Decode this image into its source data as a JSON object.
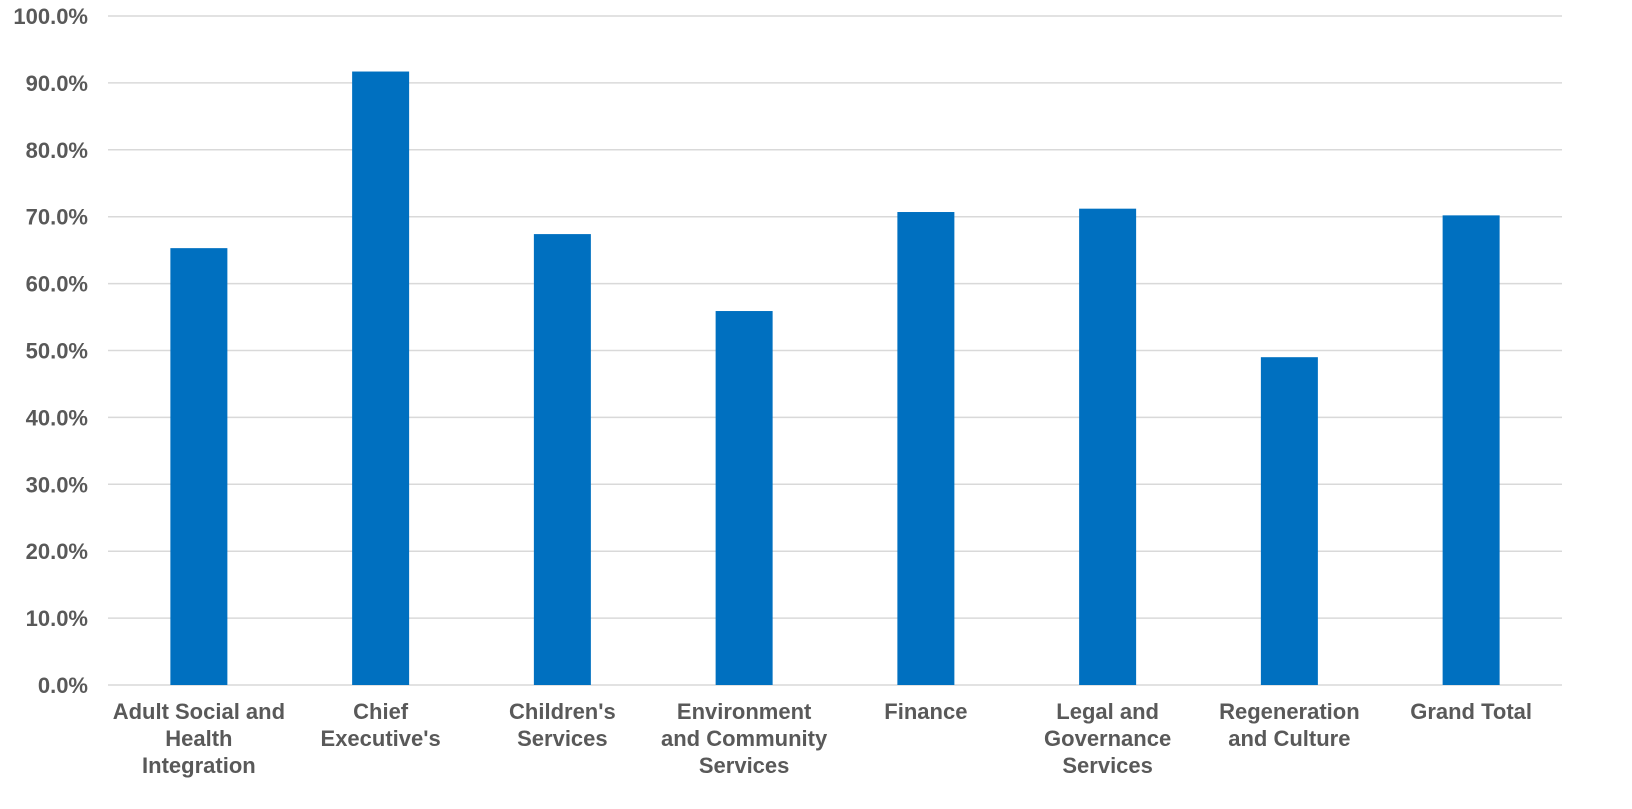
{
  "chart_data": {
    "type": "bar",
    "title": "",
    "xlabel": "",
    "ylabel": "",
    "categories": [
      "Adult Social and Health Integration",
      "Chief Executive's",
      "Children's Services",
      "Environment and Community Services",
      "Finance",
      "Legal and Governance Services",
      "Regeneration and Culture",
      "Grand Total"
    ],
    "category_label_lines": [
      [
        "Adult Social and",
        "Health",
        "Integration"
      ],
      [
        "Chief",
        "Executive's"
      ],
      [
        "Children's",
        "Services"
      ],
      [
        "Environment",
        "and Community",
        "Services"
      ],
      [
        "Finance"
      ],
      [
        "Legal and",
        "Governance",
        "Services"
      ],
      [
        "Regeneration",
        "and Culture"
      ],
      [
        "Grand Total"
      ]
    ],
    "values": [
      65.3,
      91.7,
      67.4,
      55.9,
      70.7,
      71.2,
      49.0,
      70.2
    ],
    "ylim": [
      0,
      100
    ],
    "y_ticks": [
      "0.0%",
      "10.0%",
      "20.0%",
      "30.0%",
      "40.0%",
      "50.0%",
      "60.0%",
      "70.0%",
      "80.0%",
      "90.0%",
      "100.0%"
    ],
    "y_tick_values": [
      0,
      10,
      20,
      30,
      40,
      50,
      60,
      70,
      80,
      90,
      100
    ],
    "grid": true,
    "legend": "none",
    "bar_color": "#0070c0"
  }
}
